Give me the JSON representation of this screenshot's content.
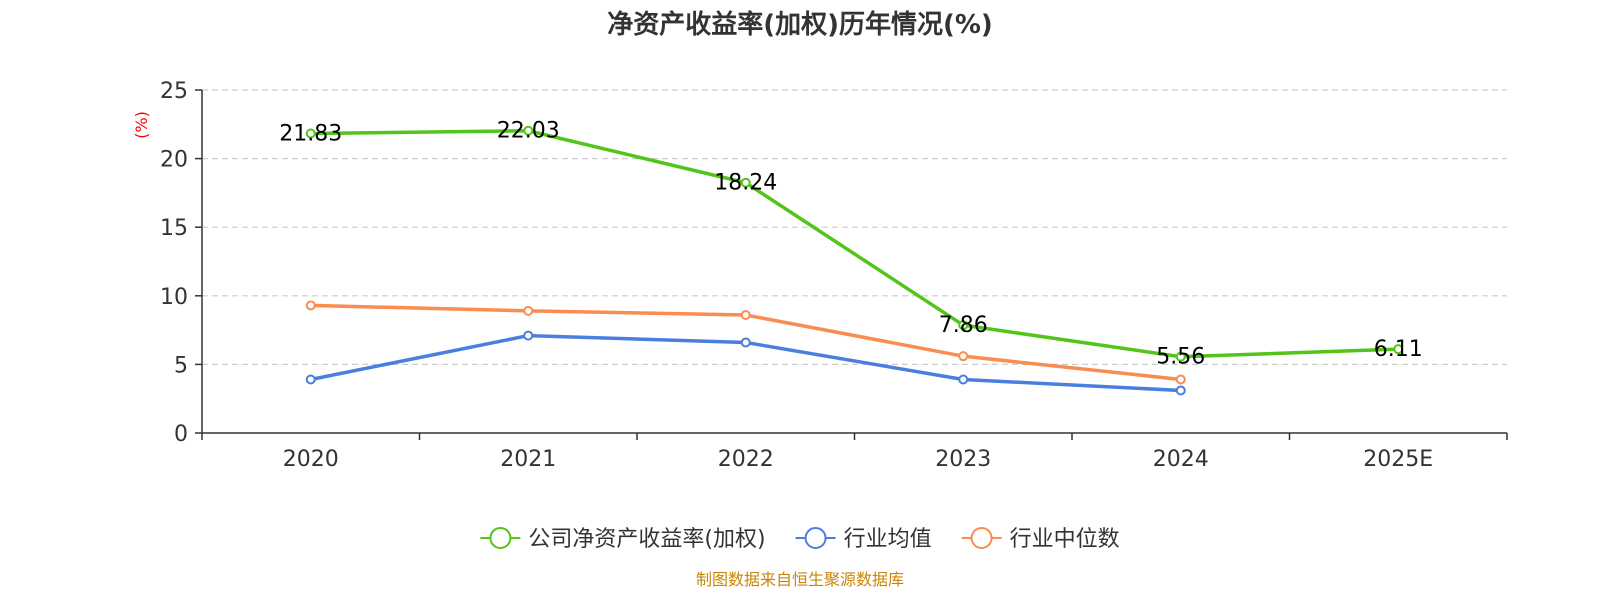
{
  "chart_data": {
    "type": "line",
    "title": "净资产收益率(加权)历年情况(%)",
    "ylabel": "(%)",
    "xlabel": "",
    "categories": [
      "2020",
      "2021",
      "2022",
      "2023",
      "2024",
      "2025E"
    ],
    "ylim": [
      0,
      25
    ],
    "yticks": [
      0,
      5,
      10,
      15,
      20,
      25
    ],
    "grid": true,
    "legend_position": "bottom-center",
    "series": [
      {
        "name": "公司净资产收益率(加权)",
        "color": "#52c41a",
        "values": [
          21.83,
          22.03,
          18.24,
          7.86,
          5.56,
          6.11
        ],
        "labels": [
          "21.83",
          "22.03",
          "18.24",
          "7.86",
          "5.56",
          "6.11"
        ]
      },
      {
        "name": "行业均值",
        "color": "#4a7fdf",
        "values": [
          3.9,
          7.1,
          6.6,
          3.9,
          3.1,
          null
        ]
      },
      {
        "name": "行业中位数",
        "color": "#fa8c4f",
        "values": [
          9.3,
          8.9,
          8.6,
          5.6,
          3.9,
          null
        ]
      }
    ],
    "source": "制图数据来自恒生聚源数据库",
    "ylabel_color": "#ff0000",
    "source_color": "#c8860a"
  }
}
